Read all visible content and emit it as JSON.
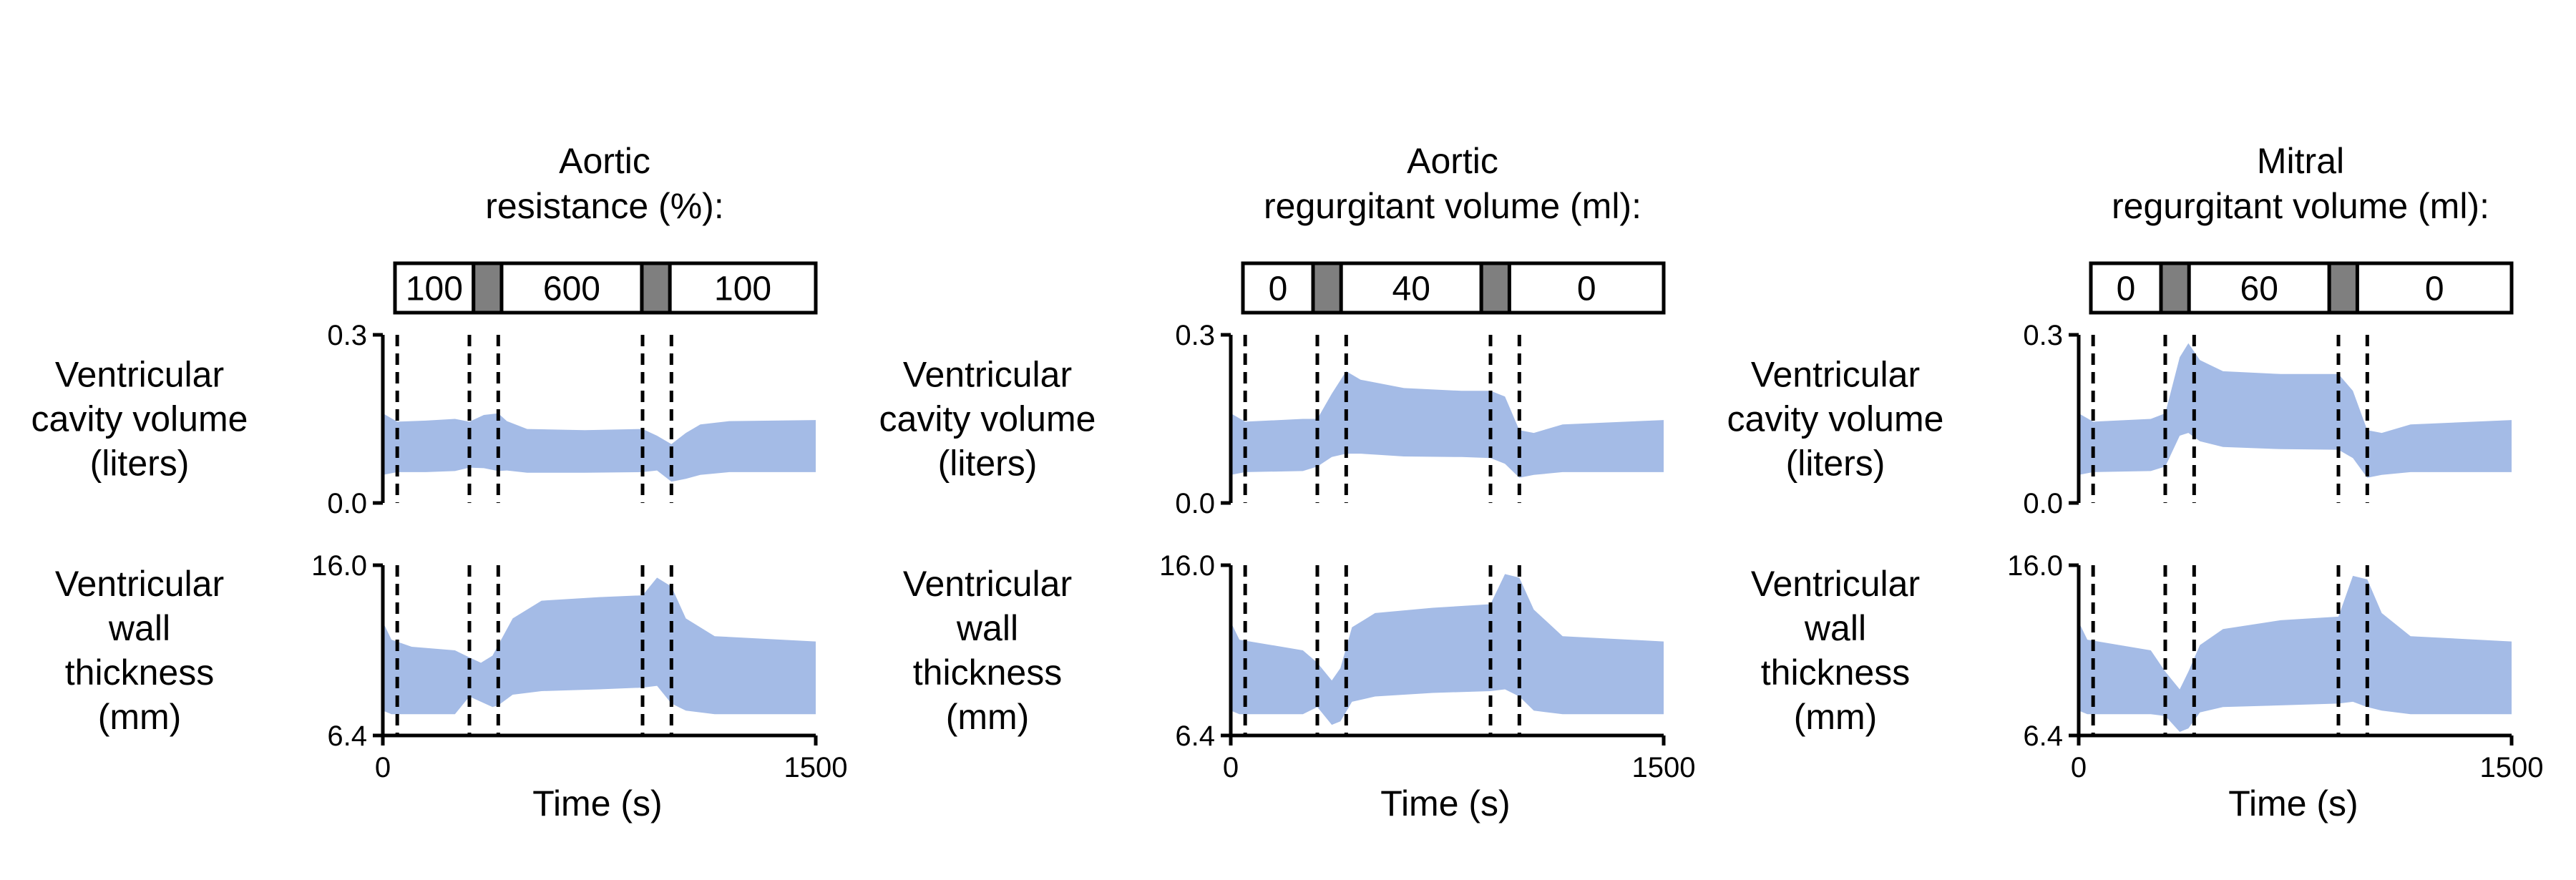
{
  "colors": {
    "band": "#a4bbe6",
    "transition": "#7f7f7f"
  },
  "chart_data": [
    {
      "type": "area",
      "title_lines": [
        "Aortic",
        "resistance (%):"
      ],
      "protocol": [
        {
          "label": "100",
          "start": 0,
          "end": 280
        },
        {
          "label": "",
          "start": 280,
          "end": 380,
          "transition": true
        },
        {
          "label": "600",
          "start": 380,
          "end": 880
        },
        {
          "label": "",
          "start": 880,
          "end": 980,
          "transition": true
        },
        {
          "label": "100",
          "start": 980,
          "end": 1500
        }
      ],
      "event_times": [
        50,
        300,
        400,
        900,
        1000
      ],
      "xlabel": "Time (s)",
      "xlim": [
        0,
        1500
      ],
      "xticks": [
        "0",
        "1500"
      ],
      "panels": [
        {
          "ylabel_lines": [
            "Ventricular",
            "cavity volume",
            "(liters)"
          ],
          "ylim": [
            0.0,
            0.3
          ],
          "yticks": [
            "0.3",
            "0.0"
          ],
          "band": [
            [
              0,
              0.05,
              0.16
            ],
            [
              50,
              0.055,
              0.145
            ],
            [
              150,
              0.055,
              0.147
            ],
            [
              250,
              0.057,
              0.15
            ],
            [
              300,
              0.063,
              0.145
            ],
            [
              350,
              0.062,
              0.157
            ],
            [
              400,
              0.057,
              0.16
            ],
            [
              430,
              0.058,
              0.146
            ],
            [
              500,
              0.054,
              0.132
            ],
            [
              700,
              0.054,
              0.13
            ],
            [
              900,
              0.055,
              0.132
            ],
            [
              950,
              0.058,
              0.12
            ],
            [
              1000,
              0.038,
              0.105
            ],
            [
              1050,
              0.043,
              0.125
            ],
            [
              1100,
              0.05,
              0.14
            ],
            [
              1200,
              0.055,
              0.146
            ],
            [
              1500,
              0.055,
              0.148
            ]
          ]
        },
        {
          "ylabel_lines": [
            "Ventricular",
            "wall",
            "thickness",
            "(mm)"
          ],
          "ylim": [
            6.4,
            16.0
          ],
          "yticks": [
            "16.0",
            "6.4"
          ],
          "band": [
            [
              0,
              7.8,
              12.8
            ],
            [
              30,
              7.6,
              11.8
            ],
            [
              100,
              7.6,
              11.4
            ],
            [
              250,
              7.6,
              11.2
            ],
            [
              300,
              8.6,
              10.8
            ],
            [
              340,
              8.3,
              10.5
            ],
            [
              380,
              8.0,
              10.9
            ],
            [
              400,
              8.1,
              11.5
            ],
            [
              450,
              8.7,
              13.0
            ],
            [
              550,
              8.9,
              14.0
            ],
            [
              750,
              9.0,
              14.2
            ],
            [
              900,
              9.1,
              14.3
            ],
            [
              950,
              9.2,
              15.3
            ],
            [
              1000,
              8.2,
              14.8
            ],
            [
              1050,
              7.8,
              13.0
            ],
            [
              1150,
              7.6,
              12.0
            ],
            [
              1500,
              7.6,
              11.7
            ]
          ]
        }
      ]
    },
    {
      "type": "area",
      "title_lines": [
        "Aortic",
        "regurgitant volume (ml):"
      ],
      "protocol": [
        {
          "label": "0",
          "start": 0,
          "end": 250
        },
        {
          "label": "",
          "start": 250,
          "end": 350,
          "transition": true
        },
        {
          "label": "40",
          "start": 350,
          "end": 850
        },
        {
          "label": "",
          "start": 850,
          "end": 950,
          "transition": true
        },
        {
          "label": "0",
          "start": 950,
          "end": 1500
        }
      ],
      "event_times": [
        50,
        300,
        400,
        900,
        1000
      ],
      "xlabel": "Time (s)",
      "xlim": [
        0,
        1500
      ],
      "xticks": [
        "0",
        "1500"
      ],
      "panels": [
        {
          "ylabel_lines": [
            "Ventricular",
            "cavity volume",
            "(liters)"
          ],
          "ylim": [
            0.0,
            0.3
          ],
          "yticks": [
            "0.3",
            "0.0"
          ],
          "band": [
            [
              0,
              0.05,
              0.16
            ],
            [
              50,
              0.055,
              0.145
            ],
            [
              250,
              0.057,
              0.15
            ],
            [
              300,
              0.065,
              0.15
            ],
            [
              350,
              0.082,
              0.195
            ],
            [
              400,
              0.088,
              0.235
            ],
            [
              450,
              0.088,
              0.22
            ],
            [
              600,
              0.083,
              0.205
            ],
            [
              800,
              0.082,
              0.2
            ],
            [
              900,
              0.08,
              0.2
            ],
            [
              950,
              0.07,
              0.19
            ],
            [
              1000,
              0.045,
              0.13
            ],
            [
              1050,
              0.05,
              0.125
            ],
            [
              1150,
              0.055,
              0.14
            ],
            [
              1500,
              0.055,
              0.148
            ]
          ]
        },
        {
          "ylabel_lines": [
            "Ventricular",
            "wall",
            "thickness",
            "(mm)"
          ],
          "ylim": [
            6.4,
            16.0
          ],
          "yticks": [
            "16.0",
            "6.4"
          ],
          "band": [
            [
              0,
              7.8,
              12.8
            ],
            [
              30,
              7.6,
              11.8
            ],
            [
              250,
              7.6,
              11.2
            ],
            [
              300,
              8.0,
              10.5
            ],
            [
              350,
              7.0,
              9.5
            ],
            [
              380,
              7.2,
              10.2
            ],
            [
              420,
              8.3,
              12.5
            ],
            [
              500,
              8.6,
              13.3
            ],
            [
              700,
              8.8,
              13.6
            ],
            [
              900,
              8.9,
              13.8
            ],
            [
              950,
              9.0,
              15.5
            ],
            [
              1000,
              8.6,
              15.3
            ],
            [
              1050,
              7.8,
              13.5
            ],
            [
              1150,
              7.6,
              12.0
            ],
            [
              1500,
              7.6,
              11.7
            ]
          ]
        }
      ]
    },
    {
      "type": "area",
      "title_lines": [
        "Mitral",
        "regurgitant volume (ml):"
      ],
      "protocol": [
        {
          "label": "0",
          "start": 0,
          "end": 250
        },
        {
          "label": "",
          "start": 250,
          "end": 350,
          "transition": true
        },
        {
          "label": "60",
          "start": 350,
          "end": 850
        },
        {
          "label": "",
          "start": 850,
          "end": 950,
          "transition": true
        },
        {
          "label": "0",
          "start": 950,
          "end": 1500
        }
      ],
      "event_times": [
        50,
        300,
        400,
        900,
        1000
      ],
      "xlabel": "Time (s)",
      "xlim": [
        0,
        1500
      ],
      "xticks": [
        "0",
        "1500"
      ],
      "panels": [
        {
          "ylabel_lines": [
            "Ventricular",
            "cavity volume",
            "(liters)"
          ],
          "ylim": [
            0.0,
            0.3
          ],
          "yticks": [
            "0.3",
            "0.0"
          ],
          "band": [
            [
              0,
              0.05,
              0.16
            ],
            [
              50,
              0.055,
              0.145
            ],
            [
              250,
              0.057,
              0.15
            ],
            [
              300,
              0.065,
              0.16
            ],
            [
              350,
              0.12,
              0.26
            ],
            [
              380,
              0.125,
              0.285
            ],
            [
              420,
              0.11,
              0.255
            ],
            [
              500,
              0.1,
              0.235
            ],
            [
              700,
              0.096,
              0.23
            ],
            [
              900,
              0.095,
              0.23
            ],
            [
              950,
              0.08,
              0.2
            ],
            [
              1000,
              0.045,
              0.13
            ],
            [
              1050,
              0.05,
              0.125
            ],
            [
              1150,
              0.055,
              0.14
            ],
            [
              1500,
              0.055,
              0.148
            ]
          ]
        },
        {
          "ylabel_lines": [
            "Ventricular",
            "wall",
            "thickness",
            "(mm)"
          ],
          "ylim": [
            6.4,
            16.0
          ],
          "yticks": [
            "16.0",
            "6.4"
          ],
          "band": [
            [
              0,
              7.8,
              12.8
            ],
            [
              30,
              7.6,
              11.8
            ],
            [
              250,
              7.6,
              11.2
            ],
            [
              300,
              7.5,
              10.0
            ],
            [
              350,
              6.6,
              9.0
            ],
            [
              380,
              6.8,
              10.0
            ],
            [
              420,
              7.7,
              11.5
            ],
            [
              500,
              8.0,
              12.4
            ],
            [
              700,
              8.1,
              12.9
            ],
            [
              900,
              8.2,
              13.1
            ],
            [
              950,
              8.3,
              15.4
            ],
            [
              1000,
              8.0,
              15.2
            ],
            [
              1050,
              7.8,
              13.3
            ],
            [
              1150,
              7.6,
              12.0
            ],
            [
              1500,
              7.6,
              11.7
            ]
          ]
        }
      ]
    }
  ]
}
